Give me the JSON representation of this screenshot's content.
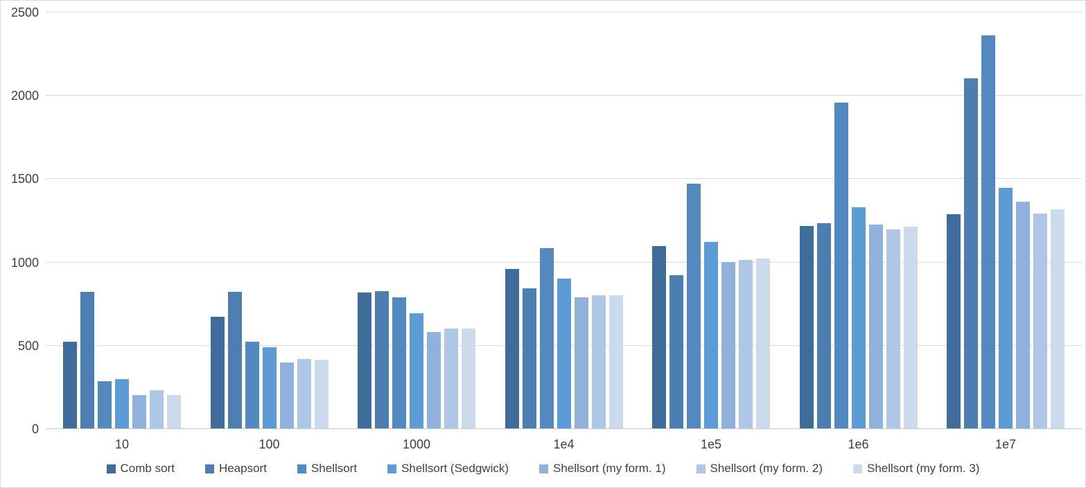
{
  "chart_data": {
    "type": "bar",
    "title": "",
    "xlabel": "",
    "ylabel": "",
    "categories": [
      "10",
      "100",
      "1000",
      "1e4",
      "1e5",
      "1e6",
      "1e7"
    ],
    "series": [
      {
        "name": "Comb sort",
        "color": "#3F6D9B",
        "values": [
          520,
          670,
          815,
          955,
          1095,
          1215,
          1285
        ]
      },
      {
        "name": "Heapsort",
        "color": "#4D7EB1",
        "values": [
          820,
          820,
          825,
          840,
          920,
          1230,
          2100
        ]
      },
      {
        "name": "Shellsort",
        "color": "#5289BF",
        "values": [
          285,
          520,
          785,
          1080,
          1470,
          1955,
          2360
        ]
      },
      {
        "name": "Shellsort (Sedgwick)",
        "color": "#5C9BD5",
        "values": [
          295,
          485,
          690,
          900,
          1120,
          1325,
          1445
        ]
      },
      {
        "name": "Shellsort (my form. 1)",
        "color": "#8FB1DB",
        "values": [
          200,
          395,
          580,
          785,
          1000,
          1225,
          1360
        ]
      },
      {
        "name": "Shellsort (my form. 2)",
        "color": "#AFC7E6",
        "values": [
          230,
          415,
          600,
          800,
          1010,
          1195,
          1290
        ]
      },
      {
        "name": "Shellsort (my form. 3)",
        "color": "#CCDAEE",
        "values": [
          200,
          410,
          600,
          800,
          1020,
          1210,
          1315
        ]
      }
    ],
    "ylim": [
      0,
      2500
    ],
    "yticks": [
      0,
      500,
      1000,
      1500,
      2000,
      2500
    ],
    "grid": true,
    "legend_position": "bottom"
  },
  "colors": {
    "background": "#FFFFFF",
    "gridline": "#D9D9D9",
    "axis_line": "#C8C8C8",
    "tick_label": "#3F3F3F"
  }
}
